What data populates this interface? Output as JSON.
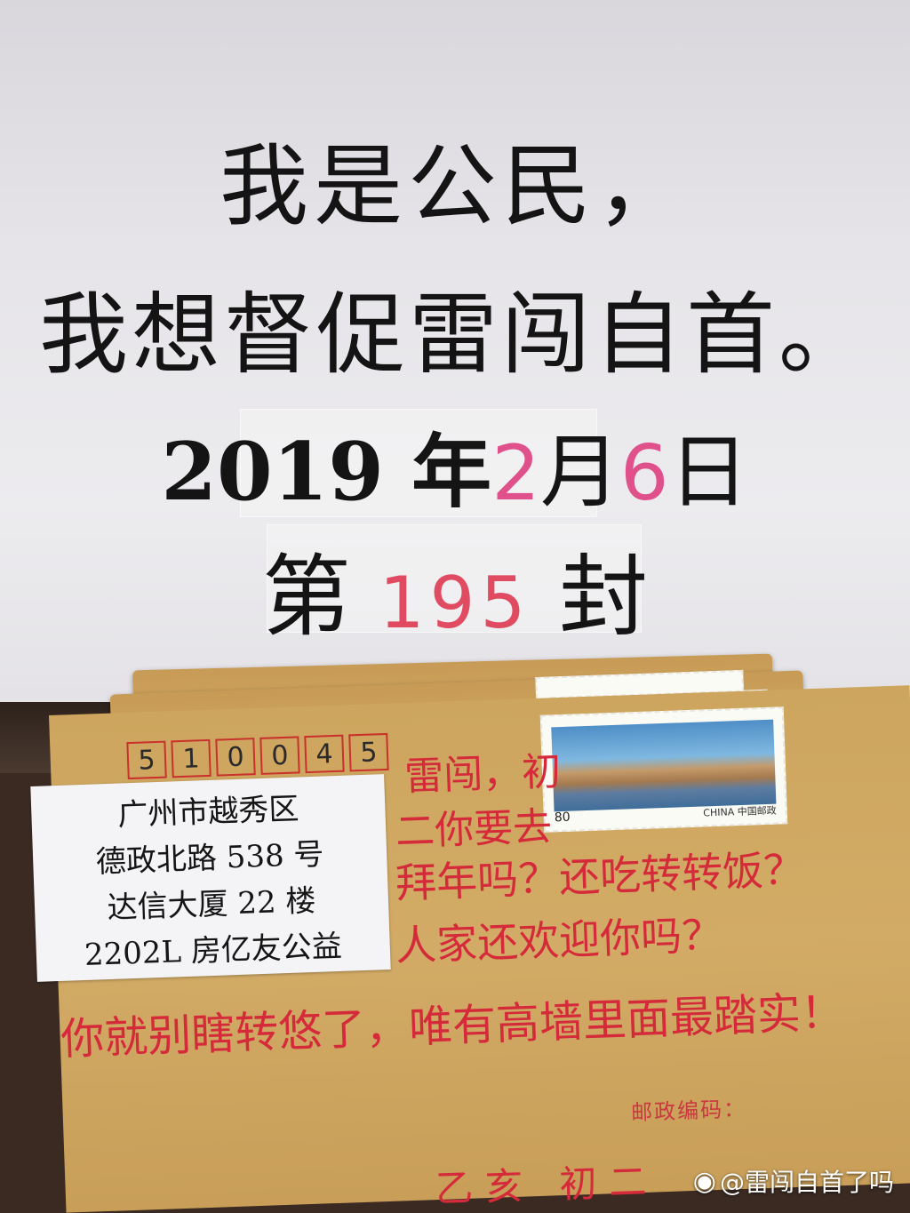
{
  "sign": {
    "line1": "我是公民，",
    "line2": "我想督促雷闯自首。",
    "date_year": "2019 年",
    "date_month": "2",
    "date_month_unit": "月",
    "date_day": "6",
    "date_day_unit": "日",
    "count_prefix": "第",
    "count_value": "195",
    "count_suffix": "封"
  },
  "envelope": {
    "postcode_digits": [
      "5",
      "1",
      "0",
      "0",
      "4",
      "5"
    ],
    "address_lines": [
      "广州市越秀区",
      "德政北路 538 号",
      "达信大厦 22 楼",
      "2202L 房亿友公益"
    ],
    "handwritten_lines": [
      "雷闯，初",
      "二你要去",
      "拜年吗？还吃转转饭？",
      "人家还欢迎你吗？",
      "你就别瞎转悠了，唯有高墙里面最踏实！"
    ],
    "postal_code_label": "邮政编码：",
    "signature": "乙亥 初二",
    "stamp": {
      "value": "80",
      "country": "CHINA 中国邮政"
    }
  },
  "watermark": {
    "text": "@雷闯自首了吗",
    "icon": "weibo-icon"
  },
  "colors": {
    "handwriting": "#d42a3a",
    "envelope": "#cda55e",
    "paper": "#e6e4e8"
  }
}
